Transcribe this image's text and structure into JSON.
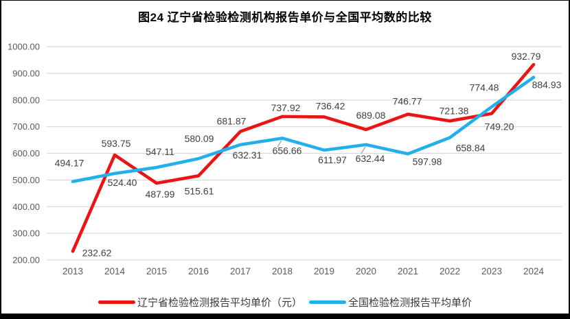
{
  "page": {
    "background": "#FFFFFF",
    "border_color": "#000000"
  },
  "chart_data": {
    "type": "line",
    "title": "图24 辽宁省检验检测机构报告单价与全国平均数的比较",
    "categories": [
      "2013",
      "2014",
      "2015",
      "2016",
      "2017",
      "2018",
      "2019",
      "2020",
      "2021",
      "2022",
      "2023",
      "2024"
    ],
    "series": [
      {
        "name": "辽宁省检验检测报告平均单价（元）",
        "color": "#EB1414",
        "values": [
          232.62,
          593.75,
          487.99,
          515.61,
          681.87,
          737.92,
          736.42,
          689.08,
          746.77,
          721.38,
          749.2,
          932.79
        ],
        "label_offsets": [
          [
            35,
            2
          ],
          [
            2,
            -17
          ],
          [
            5,
            16
          ],
          [
            1,
            22
          ],
          [
            -13,
            -15
          ],
          [
            5,
            -13
          ],
          [
            9,
            -16
          ],
          [
            7,
            -21
          ],
          [
            -1,
            -19
          ],
          [
            6,
            -15
          ],
          [
            11,
            19
          ],
          [
            -11,
            -12
          ]
        ]
      },
      {
        "name": "全国检验检测报告平均单价",
        "color": "#23B0EA",
        "values": [
          494.17,
          524.4,
          547.11,
          580.09,
          632.31,
          656.66,
          611.97,
          632.44,
          597.98,
          658.84,
          774.48,
          884.93
        ],
        "label_offsets": [
          [
            -5,
            -27
          ],
          [
            11,
            13
          ],
          [
            5,
            -23
          ],
          [
            1,
            -29
          ],
          [
            10,
            15
          ],
          [
            7,
            18
          ],
          [
            12,
            14
          ],
          [
            6,
            20
          ],
          [
            28,
            11
          ],
          [
            30,
            15
          ],
          [
            -11,
            -28
          ],
          [
            19,
            11
          ]
        ],
        "label_leader_indices": [
          5,
          7
        ]
      }
    ],
    "ylim": [
      200,
      1000
    ],
    "ytick_labels": [
      "200.00",
      "300.00",
      "400.00",
      "500.00",
      "600.00",
      "700.00",
      "800.00",
      "900.00",
      "1000.00"
    ],
    "value_format_decimals": 2,
    "grid": true,
    "legend_position": "bottom",
    "gridline_color": "#D9D9D9",
    "axis_label_color": "#595959",
    "data_label_color": "#404040",
    "leader_line_color": "#9B9B9B"
  }
}
